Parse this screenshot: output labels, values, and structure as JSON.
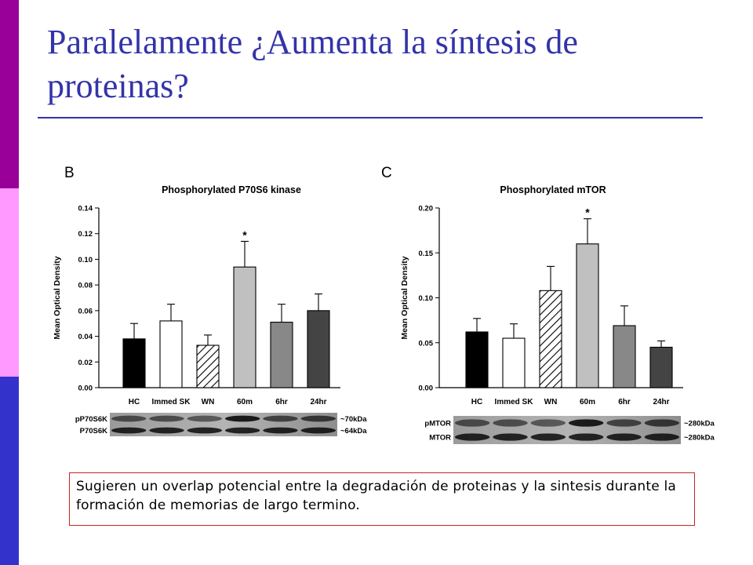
{
  "slide": {
    "title": "Paralelamente ¿Aumenta la síntesis de proteinas?",
    "note": "Sugieren un overlap potencial entre la degradación de proteinas y la sintesis durante la formación de memorias de largo termino."
  },
  "chart_data": [
    {
      "type": "bar",
      "panel": "B",
      "title": "Phosphorylated P70S6 kinase",
      "ylabel": "Mean Optical Density",
      "ylim": [
        0,
        0.14
      ],
      "yticks": [
        "0.00",
        "0.02",
        "0.04",
        "0.06",
        "0.08",
        "0.10",
        "0.12",
        "0.14"
      ],
      "categories": [
        "HC",
        "Immed SK",
        "WN",
        "60m",
        "6hr",
        "24hr"
      ],
      "values": [
        0.038,
        0.052,
        0.033,
        0.094,
        0.051,
        0.06
      ],
      "errors": [
        0.012,
        0.013,
        0.008,
        0.02,
        0.014,
        0.013
      ],
      "fills": [
        "#000000",
        "#ffffff",
        "hatch",
        "#c0c0c0",
        "#888888",
        "#444444"
      ],
      "significance": [
        null,
        null,
        null,
        "*",
        null,
        null
      ],
      "blots": [
        {
          "label": "pP70S6K",
          "size": "~70kDa"
        },
        {
          "label": "P70S6K",
          "size": "~64kDa"
        }
      ]
    },
    {
      "type": "bar",
      "panel": "C",
      "title": "Phosphorylated mTOR",
      "ylabel": "Mean Optical Density",
      "ylim": [
        0,
        0.2
      ],
      "yticks": [
        "0.00",
        "0.05",
        "0.10",
        "0.15",
        "0.20"
      ],
      "categories": [
        "HC",
        "Immed SK",
        "WN",
        "60m",
        "6hr",
        "24hr"
      ],
      "values": [
        0.062,
        0.055,
        0.108,
        0.16,
        0.069,
        0.045
      ],
      "errors": [
        0.015,
        0.016,
        0.027,
        0.028,
        0.022,
        0.007
      ],
      "fills": [
        "#000000",
        "#ffffff",
        "hatch",
        "#c0c0c0",
        "#888888",
        "#444444"
      ],
      "significance": [
        null,
        null,
        null,
        "*",
        null,
        null
      ],
      "blots": [
        {
          "label": "pMTOR",
          "size": "~280kDa"
        },
        {
          "label": "MTOR",
          "size": "~280kDa"
        }
      ]
    }
  ]
}
